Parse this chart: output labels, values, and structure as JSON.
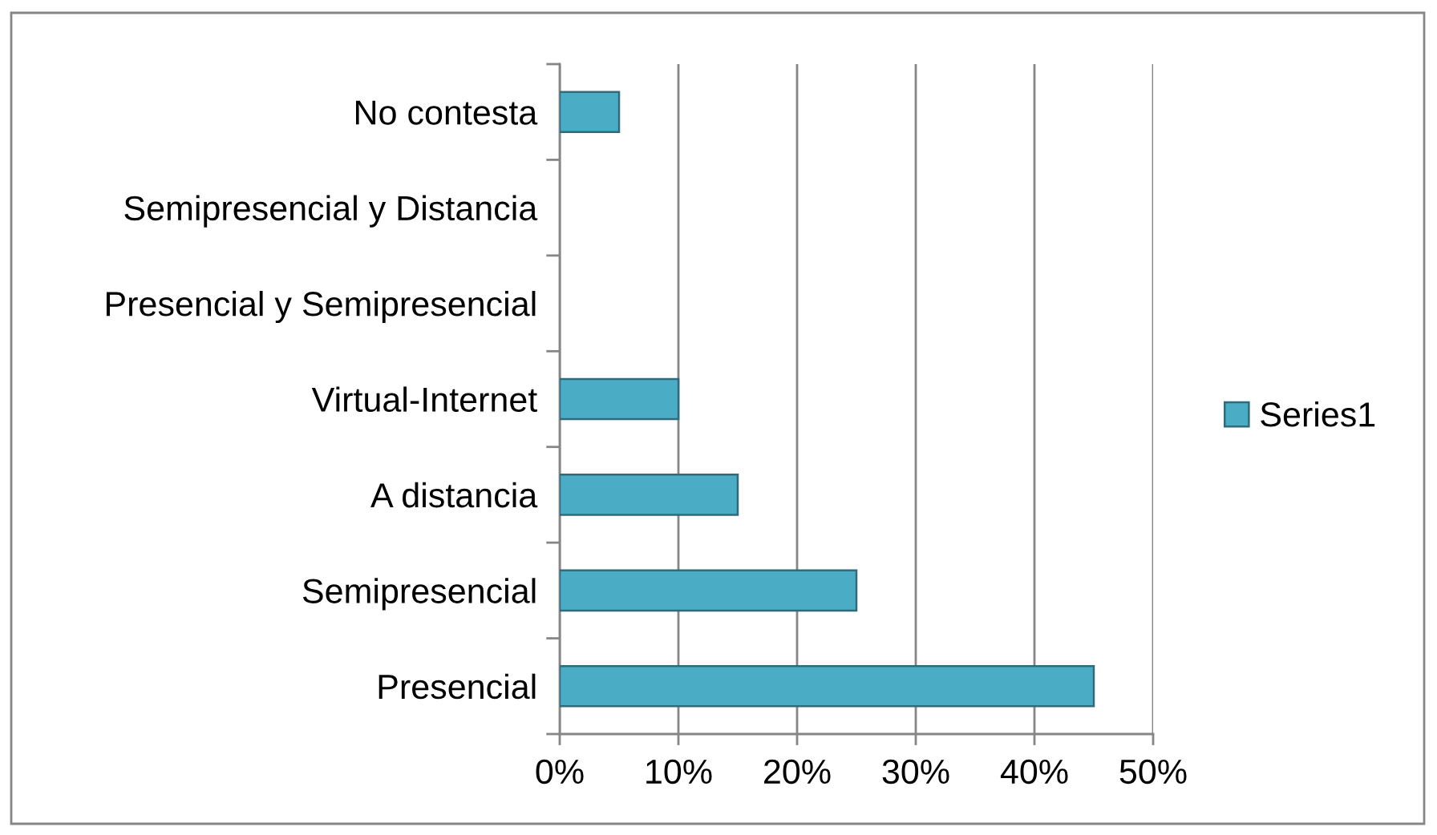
{
  "chart_data": {
    "type": "bar",
    "orientation": "horizontal",
    "categories": [
      "No contesta",
      "Semipresencial y Distancia",
      "Presencial y Semipresencial",
      "Virtual-Internet",
      "A distancia",
      "Semipresencial",
      "Presencial"
    ],
    "series": [
      {
        "name": "Series1",
        "color": "#4bacc6",
        "values": [
          5,
          0,
          0,
          10,
          15,
          25,
          45
        ]
      }
    ],
    "xlim": [
      0,
      50
    ],
    "xticks": [
      {
        "value": 0,
        "label": "0%"
      },
      {
        "value": 10,
        "label": "10%"
      },
      {
        "value": 20,
        "label": "20%"
      },
      {
        "value": 30,
        "label": "30%"
      },
      {
        "value": 40,
        "label": "40%"
      },
      {
        "value": 50,
        "label": "50%"
      }
    ],
    "grid": "x",
    "legend": "right"
  }
}
